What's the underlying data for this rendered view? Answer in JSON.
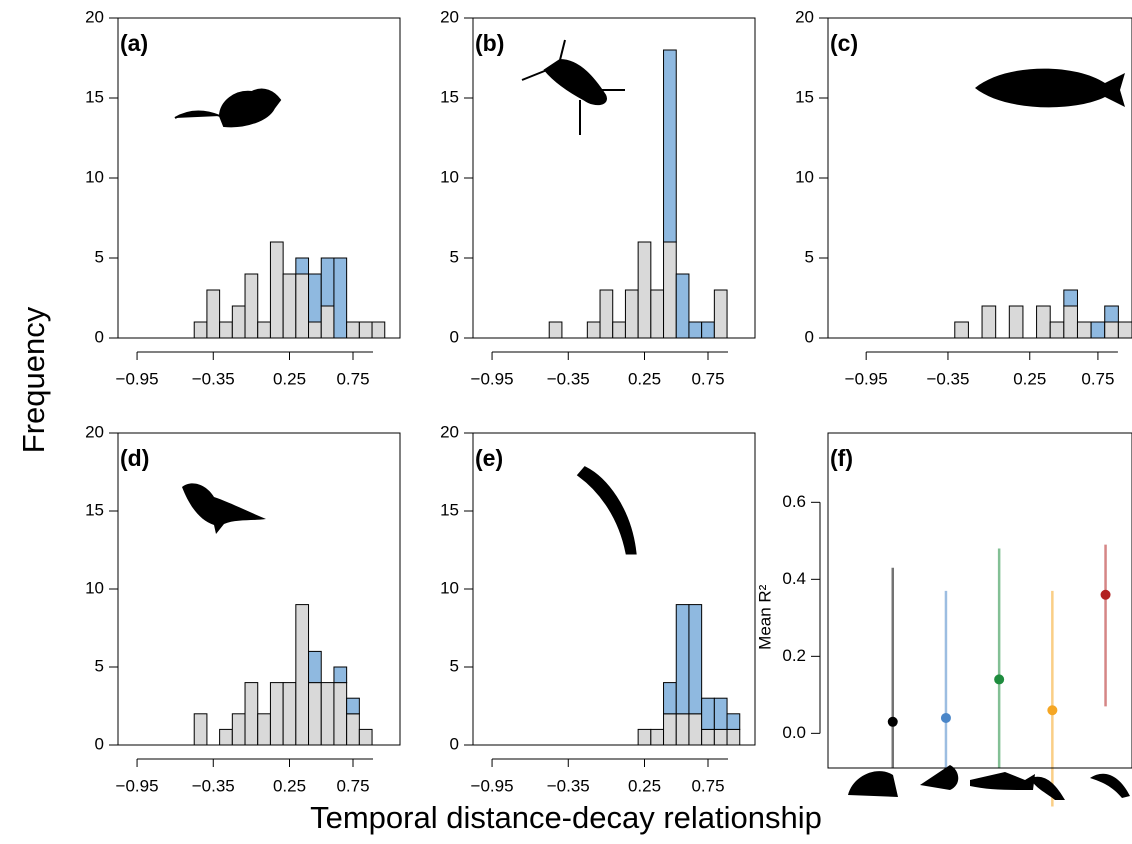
{
  "ylabel": "Frequency",
  "xlabel": "Temporal distance-decay relationship",
  "chart_data": [
    {
      "type": "histogram",
      "label": "(a)",
      "bins": [
        -1.0,
        -0.9,
        -0.8,
        -0.7,
        -0.6,
        -0.5,
        -0.4,
        -0.3,
        -0.2,
        -0.1,
        0.0,
        0.1,
        0.2,
        0.3,
        0.4,
        0.5,
        0.6,
        0.7,
        0.8,
        0.9,
        1.0
      ],
      "series": [
        {
          "color": "#d9d9d9",
          "values": [
            0,
            0,
            0,
            0,
            0,
            1,
            3,
            1,
            2,
            4,
            1,
            6,
            4,
            4,
            1,
            2,
            0,
            1,
            1,
            1
          ]
        },
        {
          "color": "#8fb9e0",
          "values": [
            0,
            0,
            0,
            0,
            0,
            0,
            0,
            0,
            0,
            0,
            0,
            0,
            0,
            1,
            3,
            3,
            5,
            0,
            0,
            0
          ]
        }
      ],
      "xlim": [
        -1.1,
        1.12
      ],
      "xticks": [
        {
          "value": -0.95,
          "label": "−0.95"
        },
        {
          "value": -0.35,
          "label": "−0.35"
        },
        0.25,
        0.75
      ],
      "ylim": [
        0,
        20
      ],
      "yticks": [
        0,
        5,
        10,
        15,
        20
      ]
    },
    {
      "type": "histogram",
      "label": "(b)",
      "bins": [
        -1.0,
        -0.9,
        -0.8,
        -0.7,
        -0.6,
        -0.5,
        -0.4,
        -0.3,
        -0.2,
        -0.1,
        0.0,
        0.1,
        0.2,
        0.3,
        0.4,
        0.5,
        0.6,
        0.7,
        0.8,
        0.9,
        1.0
      ],
      "series": [
        {
          "color": "#d9d9d9",
          "values": [
            0,
            0,
            0,
            0,
            0,
            1,
            0,
            0,
            1,
            3,
            1,
            3,
            6,
            3,
            6,
            0,
            0,
            0,
            3,
            0
          ]
        },
        {
          "color": "#8fb9e0",
          "values": [
            0,
            0,
            0,
            0,
            0,
            0,
            0,
            0,
            0,
            0,
            0,
            0,
            0,
            0,
            12,
            4,
            1,
            1,
            0,
            0
          ]
        }
      ],
      "xlim": [
        -1.1,
        1.12
      ],
      "xticks": [
        {
          "value": -0.95,
          "label": "−0.95"
        },
        {
          "value": -0.35,
          "label": "−0.35"
        },
        0.25,
        0.75
      ],
      "ylim": [
        0,
        20
      ],
      "yticks": [
        0,
        5,
        10,
        15,
        20
      ]
    },
    {
      "type": "histogram",
      "label": "(c)",
      "bins": [
        -1.0,
        -0.9,
        -0.8,
        -0.7,
        -0.6,
        -0.5,
        -0.4,
        -0.3,
        -0.2,
        -0.1,
        0.0,
        0.1,
        0.2,
        0.3,
        0.4,
        0.5,
        0.6,
        0.7,
        0.8,
        0.9,
        1.0
      ],
      "series": [
        {
          "color": "#d9d9d9",
          "values": [
            0,
            0,
            0,
            0,
            0,
            0,
            0,
            1,
            0,
            2,
            0,
            2,
            0,
            2,
            1,
            2,
            1,
            0,
            1,
            1
          ]
        },
        {
          "color": "#8fb9e0",
          "values": [
            0,
            0,
            0,
            0,
            0,
            0,
            0,
            0,
            0,
            0,
            0,
            0,
            0,
            0,
            0,
            1,
            0,
            1,
            1,
            0
          ]
        }
      ],
      "xlim": [
        -1.23,
        1.0
      ],
      "xticks": [
        {
          "value": -0.95,
          "label": "−0.95"
        },
        {
          "value": -0.35,
          "label": "−0.35"
        },
        0.25,
        0.75
      ],
      "ylim": [
        0,
        20
      ],
      "yticks": [
        0,
        5,
        10,
        15,
        20
      ]
    },
    {
      "type": "histogram",
      "label": "(d)",
      "bins": [
        -1.0,
        -0.9,
        -0.8,
        -0.7,
        -0.6,
        -0.5,
        -0.4,
        -0.3,
        -0.2,
        -0.1,
        0.0,
        0.1,
        0.2,
        0.3,
        0.4,
        0.5,
        0.6,
        0.7,
        0.8,
        0.9,
        1.0
      ],
      "series": [
        {
          "color": "#d9d9d9",
          "values": [
            0,
            0,
            0,
            0,
            0,
            2,
            0,
            1,
            2,
            4,
            2,
            4,
            4,
            9,
            4,
            4,
            4,
            2,
            1,
            0
          ]
        },
        {
          "color": "#8fb9e0",
          "values": [
            0,
            0,
            0,
            0,
            0,
            0,
            0,
            0,
            0,
            0,
            0,
            0,
            0,
            0,
            2,
            0,
            1,
            1,
            0,
            0
          ]
        }
      ],
      "xlim": [
        -1.1,
        1.12
      ],
      "xticks": [
        {
          "value": -0.95,
          "label": "−0.95"
        },
        {
          "value": -0.35,
          "label": "−0.35"
        },
        0.25,
        0.75
      ],
      "ylim": [
        0,
        20
      ],
      "yticks": [
        0,
        5,
        10,
        15,
        20
      ]
    },
    {
      "type": "histogram",
      "label": "(e)",
      "bins": [
        -1.0,
        -0.9,
        -0.8,
        -0.7,
        -0.6,
        -0.5,
        -0.4,
        -0.3,
        -0.2,
        -0.1,
        0.0,
        0.1,
        0.2,
        0.3,
        0.4,
        0.5,
        0.6,
        0.7,
        0.8,
        0.9,
        1.0
      ],
      "series": [
        {
          "color": "#d9d9d9",
          "values": [
            0,
            0,
            0,
            0,
            0,
            0,
            0,
            0,
            0,
            0,
            0,
            0,
            1,
            1,
            2,
            2,
            2,
            1,
            1,
            1
          ]
        },
        {
          "color": "#8fb9e0",
          "values": [
            0,
            0,
            0,
            0,
            0,
            0,
            0,
            0,
            0,
            0,
            0,
            0,
            0,
            0,
            2,
            7,
            7,
            2,
            2,
            1
          ]
        }
      ],
      "xlim": [
        -1.1,
        1.12
      ],
      "xticks": [
        {
          "value": -0.95,
          "label": "−0.95"
        },
        {
          "value": -0.35,
          "label": "−0.35"
        },
        0.25,
        0.75
      ],
      "ylim": [
        0,
        20
      ],
      "yticks": [
        0,
        5,
        10,
        15,
        20
      ]
    },
    {
      "type": "pointrange",
      "label": "(f)",
      "ylabel": "Mean R²",
      "series": [
        {
          "color": "#000000",
          "values": [
            0.03
          ],
          "lower": [
            -0.09
          ],
          "upper": [
            0.43
          ]
        },
        {
          "color": "#4a86c8",
          "values": [
            0.04
          ],
          "lower": [
            -0.09
          ],
          "upper": [
            0.37
          ]
        },
        {
          "color": "#1e8c3e",
          "values": [
            0.14
          ],
          "lower": [
            -0.09
          ],
          "upper": [
            0.48
          ]
        },
        {
          "color": "#f5a623",
          "values": [
            0.06
          ],
          "lower": [
            -0.19
          ],
          "upper": [
            0.37
          ]
        },
        {
          "color": "#b22222",
          "values": [
            0.36
          ],
          "lower": [
            0.07
          ],
          "upper": [
            0.49
          ]
        }
      ],
      "ylim": [
        -0.09,
        0.78
      ],
      "yticks": [
        {
          "value": 0,
          "label": "0.0"
        },
        0.2,
        0.4,
        0.6
      ]
    }
  ]
}
